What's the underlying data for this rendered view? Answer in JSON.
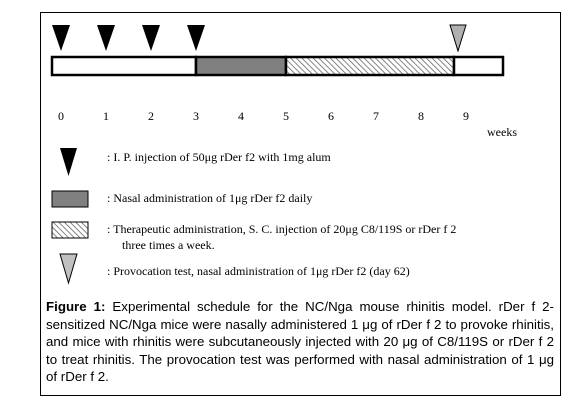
{
  "timeline": {
    "ticks": [
      "0",
      "1",
      "2",
      "3",
      "4",
      "5",
      "6",
      "7",
      "8",
      "9"
    ],
    "unit": "weeks"
  },
  "legend": [
    {
      "text": ":  I. P. injection of 50μg rDer f2 with 1mg alum"
    },
    {
      "text": ":  Nasal administration of 1μg rDer f2 daily"
    },
    {
      "lines": [
        ":  Therapeutic administration, S. C. injection of 20μg C8/119S or rDer f 2",
        "three times a week."
      ]
    },
    {
      "text": ":  Provocation test, nasal administration of 1μg rDer f2 (day 62)"
    }
  ],
  "caption": {
    "label": "Figure 1:",
    "text": " Experimental schedule for the NC/Nga mouse rhinitis model. rDer f 2-sensitized NC/Nga mice were nasally administered 1 μg of rDer f 2 to provoke rhinitis, and mice with rhinitis were subcutaneously injected with 20 μg of C8/119S or rDer f 2 to treat rhinitis. The provocation test was performed with nasal administration of 1 μg of rDer f 2."
  }
}
